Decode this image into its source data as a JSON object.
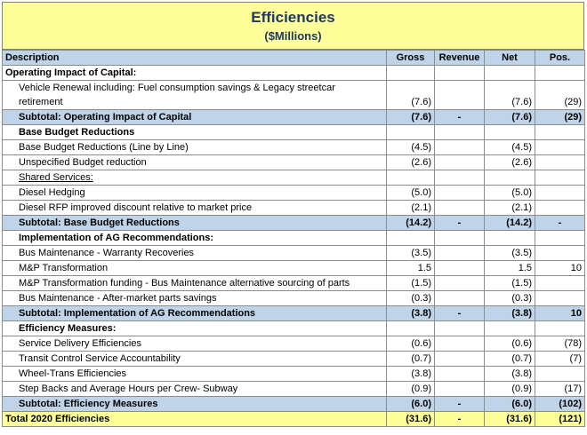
{
  "header": {
    "title": "Efficiencies",
    "subtitle": "($Millions)"
  },
  "columns": [
    "Description",
    "Gross",
    "Revenue",
    "Net",
    "Pos."
  ],
  "sections": {
    "s1_title": "Operating Impact of Capital:",
    "s1_row1": {
      "desc": "Vehicle Renewal including: Fuel consumption savings & Legacy streetcar retirement",
      "gross": "(7.6)",
      "revenue": "",
      "net": "(7.6)",
      "pos": "(29)"
    },
    "s1_sub": {
      "desc": "Subtotal: Operating Impact of Capital",
      "gross": "(7.6)",
      "revenue": "-",
      "net": "(7.6)",
      "pos": "(29)"
    },
    "s2_title": "Base Budget Reductions",
    "s2_rows": [
      {
        "desc": "Base Budget Reductions (Line by Line)",
        "gross": "(4.5)",
        "revenue": "",
        "net": "(4.5)",
        "pos": ""
      },
      {
        "desc": "Unspecified Budget reduction",
        "gross": "(2.6)",
        "revenue": "",
        "net": "(2.6)",
        "pos": ""
      },
      {
        "desc": "Shared Services:",
        "gross": "",
        "revenue": "",
        "net": "",
        "pos": ""
      },
      {
        "desc": "Diesel Hedging",
        "gross": "(5.0)",
        "revenue": "",
        "net": "(5.0)",
        "pos": ""
      },
      {
        "desc": "Diesel RFP improved discount relative to market price",
        "gross": "(2.1)",
        "revenue": "",
        "net": "(2.1)",
        "pos": ""
      }
    ],
    "s2_sub": {
      "desc": "Subtotal: Base Budget Reductions",
      "gross": "(14.2)",
      "revenue": "-",
      "net": "(14.2)",
      "pos": "-"
    },
    "s3_title": "Implementation of AG Recommendations:",
    "s3_rows": [
      {
        "desc": "Bus Maintenance - Warranty Recoveries",
        "gross": "(3.5)",
        "revenue": "",
        "net": "(3.5)",
        "pos": ""
      },
      {
        "desc": "M&P Transformation",
        "gross": "1.5",
        "revenue": "",
        "net": "1.5",
        "pos": "10"
      },
      {
        "desc": "M&P Transformation funding - Bus Maintenance alternative sourcing of parts",
        "gross": "(1.5)",
        "revenue": "",
        "net": "(1.5)",
        "pos": ""
      },
      {
        "desc": "Bus Maintenance - After-market parts savings",
        "gross": "(0.3)",
        "revenue": "",
        "net": "(0.3)",
        "pos": ""
      }
    ],
    "s3_sub": {
      "desc": "Subtotal: Implementation of AG Recommendations",
      "gross": "(3.8)",
      "revenue": "-",
      "net": "(3.8)",
      "pos": "10"
    },
    "s4_title": "Efficiency Measures:",
    "s4_rows": [
      {
        "desc": "Service Delivery Efficiencies",
        "gross": "(0.6)",
        "revenue": "",
        "net": "(0.6)",
        "pos": "(78)"
      },
      {
        "desc": "Transit Control Service Accountability",
        "gross": "(0.7)",
        "revenue": "",
        "net": "(0.7)",
        "pos": "(7)"
      },
      {
        "desc": "Wheel-Trans Efficiencies",
        "gross": "(3.8)",
        "revenue": "",
        "net": "(3.8)",
        "pos": ""
      },
      {
        "desc": "Step Backs and Average Hours per Crew- Subway",
        "gross": "(0.9)",
        "revenue": "",
        "net": "(0.9)",
        "pos": "(17)"
      }
    ],
    "s4_sub": {
      "desc": "Subtotal: Efficiency Measures",
      "gross": "(6.0)",
      "revenue": "-",
      "net": "(6.0)",
      "pos": "(102)"
    },
    "total": {
      "desc": "Total 2020 Efficiencies",
      "gross": "(31.6)",
      "revenue": "-",
      "net": "(31.6)",
      "pos": "(121)"
    }
  }
}
